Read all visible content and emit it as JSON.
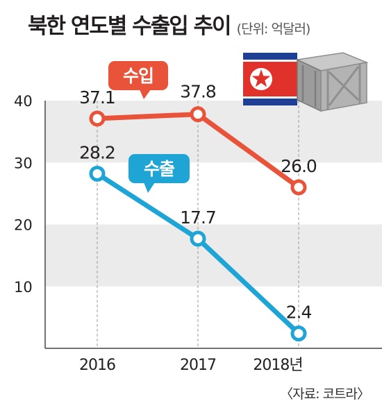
{
  "title": "북한 연도별 수출입 추이",
  "unit": "(단위: 억달러)",
  "source": "〈자료: 코트라〉",
  "colors": {
    "import": "#e8533a",
    "export": "#1ea5d6",
    "band": "#ebebeb",
    "axis": "#444444"
  },
  "icons": [
    "north-korea-flag-icon",
    "cargo-crate-icon"
  ],
  "chart_data": {
    "type": "line",
    "categories": [
      "2016",
      "2017",
      "2018년"
    ],
    "ylim": [
      0,
      40
    ],
    "yticks": [
      10,
      20,
      30,
      40
    ],
    "grid": "alternating horizontal bands",
    "series": [
      {
        "name": "수입",
        "values": [
          37.1,
          37.8,
          26.0
        ],
        "labels": [
          "37.1",
          "37.8",
          "26.0"
        ],
        "color": "#e8533a"
      },
      {
        "name": "수출",
        "values": [
          28.2,
          17.7,
          2.4
        ],
        "labels": [
          "28.2",
          "17.7",
          "2.4"
        ],
        "color": "#1ea5d6"
      }
    ]
  }
}
